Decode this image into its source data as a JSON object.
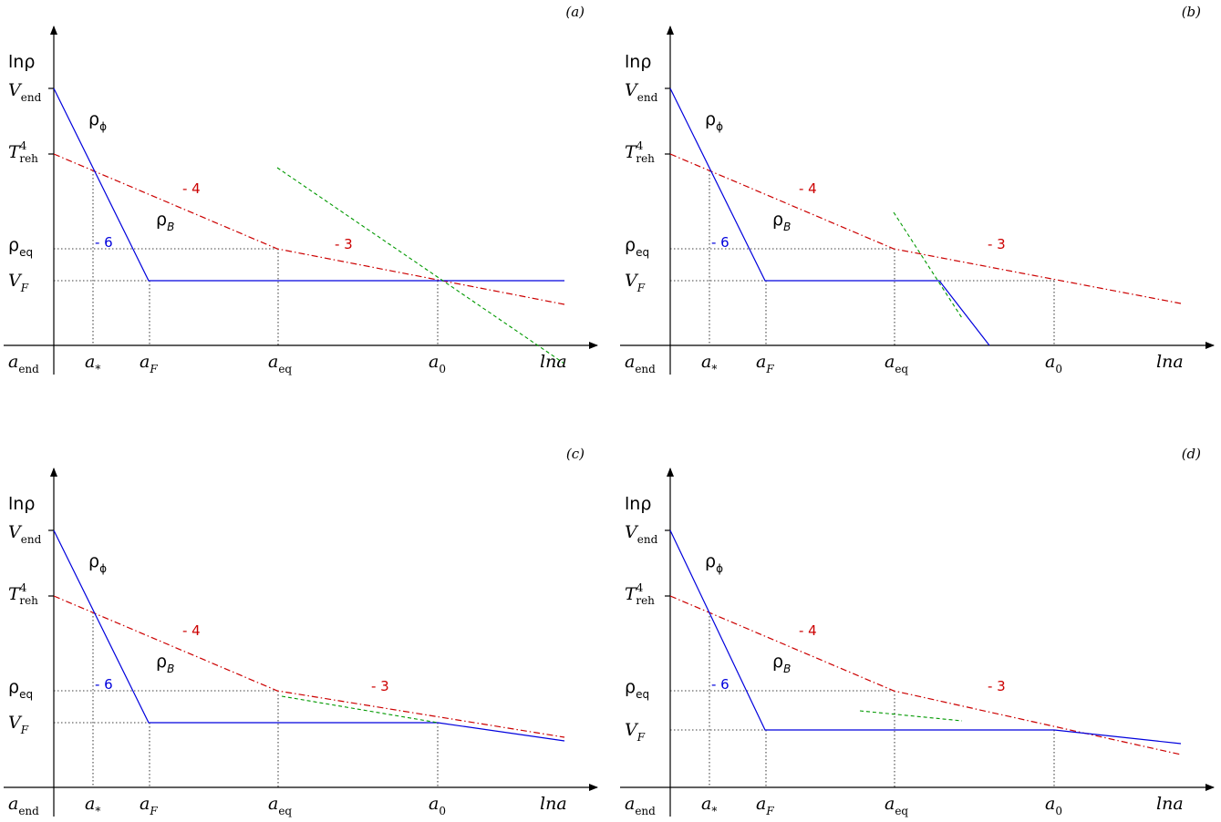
{
  "colors": {
    "inflaton": "#0000dd",
    "magnetic": "#cc0000",
    "green": "#009900",
    "axes": "#000000"
  },
  "labels": {
    "y_axis": "lnρ",
    "x_axis": "lna",
    "V_end": "V",
    "V_end_sub": "end",
    "T_reh": "T",
    "T_reh_sub": "reh",
    "T_reh_sup": "4",
    "rho_eq": "ρ",
    "rho_eq_sub": "eq",
    "V_F": "V",
    "V_F_sub": "F",
    "a_end": "a",
    "a_end_sub": "end",
    "a_star": "a",
    "a_star_sub": "*",
    "a_F": "a",
    "a_F_sub": "F",
    "a_eq": "a",
    "a_eq_sub": "eq",
    "a_0": "a",
    "a_0_sub": "0",
    "rho_phi": "ρ",
    "rho_phi_sub": "ϕ",
    "rho_B": "ρ",
    "rho_B_sub": "B",
    "slope_blue": "- 6",
    "slope_red_1": "- 4",
    "slope_red_2": "- 3"
  },
  "panels": [
    {
      "tag": "(a)"
    },
    {
      "tag": "(b)"
    },
    {
      "tag": "(c)"
    },
    {
      "tag": "(d)"
    }
  ]
}
